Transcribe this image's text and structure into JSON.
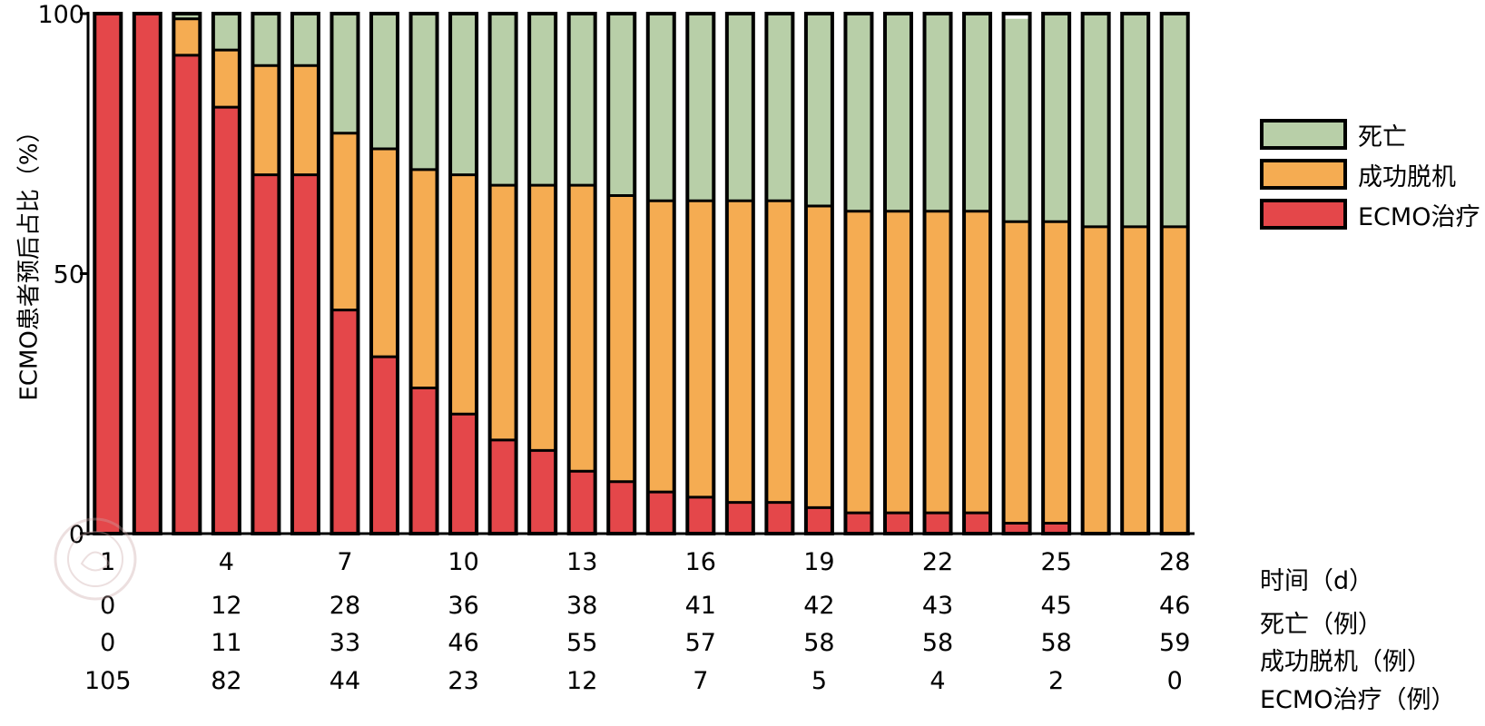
{
  "chart_data": {
    "type": "bar",
    "stacked": true,
    "ylabel": "ECMO患者预后占比（%）",
    "ylim": [
      0,
      100
    ],
    "yticks": [
      "0",
      "50",
      "100"
    ],
    "x": [
      1,
      2,
      3,
      4,
      5,
      6,
      7,
      8,
      9,
      10,
      11,
      12,
      13,
      14,
      15,
      16,
      17,
      18,
      19,
      20,
      21,
      22,
      23,
      24,
      25,
      26,
      27,
      28
    ],
    "xtick_labels": [
      "1",
      "4",
      "7",
      "10",
      "13",
      "16",
      "19",
      "22",
      "25",
      "28"
    ],
    "legend_position": "right",
    "series": [
      {
        "name": "死亡",
        "color": "#b8cfa8",
        "values": [
          0,
          0,
          1,
          7,
          10,
          10,
          23,
          26,
          30,
          31,
          33,
          33,
          33,
          35,
          36,
          36,
          36,
          36,
          37,
          38,
          38,
          38,
          38,
          39,
          40,
          41,
          41,
          41
        ]
      },
      {
        "name": "成功脱机",
        "color": "#f5ac52",
        "values": [
          0,
          0,
          7,
          11,
          21,
          21,
          34,
          40,
          42,
          46,
          49,
          51,
          55,
          55,
          56,
          57,
          58,
          58,
          58,
          58,
          58,
          58,
          58,
          58,
          58,
          59,
          59,
          59
        ]
      },
      {
        "name": "ECMO治疗",
        "color": "#e4474a",
        "values": [
          100,
          100,
          92,
          82,
          69,
          69,
          43,
          34,
          28,
          23,
          18,
          16,
          12,
          10,
          8,
          7,
          6,
          6,
          5,
          4,
          4,
          4,
          4,
          2,
          2,
          0,
          0,
          0
        ]
      }
    ],
    "table": {
      "days_label": "时间（d）",
      "rows": [
        {
          "label": "死亡（例）",
          "values": [
            "0",
            "12",
            "28",
            "36",
            "38",
            "41",
            "42",
            "43",
            "45",
            "46"
          ]
        },
        {
          "label": "成功脱机（例）",
          "values": [
            "0",
            "11",
            "33",
            "46",
            "55",
            "57",
            "58",
            "58",
            "58",
            "59"
          ]
        },
        {
          "label": "ECMO治疗（例）",
          "values": [
            "105",
            "82",
            "44",
            "23",
            "12",
            "7",
            "5",
            "4",
            "2",
            "0"
          ]
        }
      ]
    }
  },
  "watermark_icon": "seal-icon"
}
